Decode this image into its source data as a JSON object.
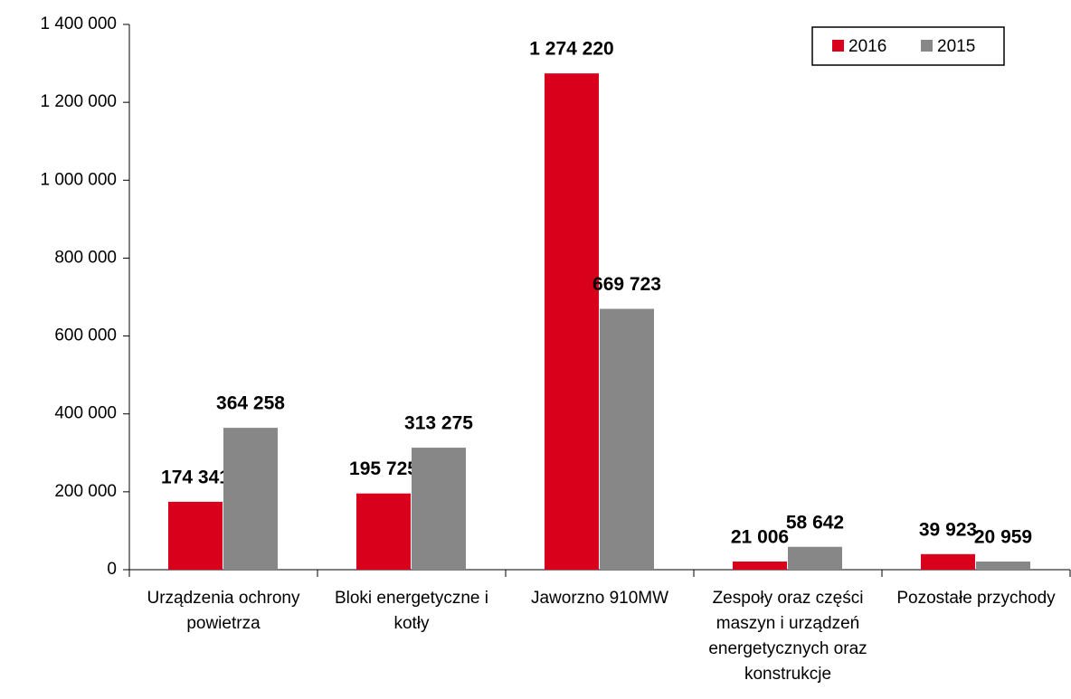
{
  "chart_data": {
    "type": "bar",
    "categories": [
      "Urządzenia ochrony powietrza",
      "Bloki energetyczne i kotły",
      "Jaworzno 910MW",
      "Zespoły oraz części maszyn i urządzeń energetycznych oraz konstrukcje",
      "Pozostałe przychody"
    ],
    "series": [
      {
        "name": "2016",
        "color": "#d9001b",
        "values": [
          174341,
          195725,
          1274220,
          21006,
          39923
        ],
        "value_labels": [
          "174 341",
          "195 725",
          "1 274 220",
          "21 006",
          "39 923"
        ]
      },
      {
        "name": "2015",
        "color": "#878787",
        "values": [
          364258,
          313275,
          669723,
          58642,
          20959
        ],
        "value_labels": [
          "364 258",
          "313 275",
          "669 723",
          "58 642",
          "20 959"
        ]
      }
    ],
    "ylim": [
      0,
      1400000
    ],
    "yticks": [
      0,
      {
        "value": 200000,
        "label": "200 000"
      },
      {
        "value": 400000,
        "label": "400 000"
      },
      {
        "value": 600000,
        "label": "600 000"
      },
      {
        "value": 800000,
        "label": "800 000"
      },
      {
        "value": 1000000,
        "label": "1 000 000"
      },
      {
        "value": 1200000,
        "label": "1 200 000"
      },
      {
        "value": 1400000,
        "label": "1 400 000"
      }
    ],
    "grid": false,
    "legend": "top-right"
  }
}
